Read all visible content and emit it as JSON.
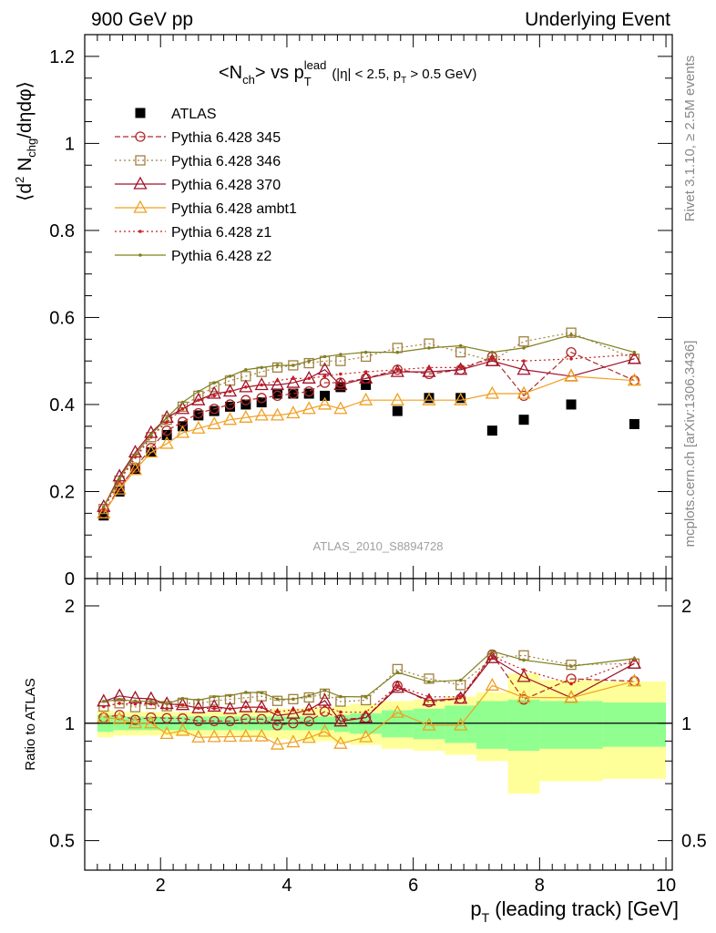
{
  "header": {
    "left": "900 GeV pp",
    "right": "Underlying Event"
  },
  "side_labels": {
    "rivet": "Rivet 3.1.10, ≥ 2.5M events",
    "mcplots": "mcplots.cern.ch [arXiv:1306.3436]"
  },
  "chart_data": [
    {
      "type": "scatter",
      "panel": "main",
      "title_parts": {
        "n": "<N",
        "n_sub": "ch",
        "mid": "> vs p",
        "p_sub": "T",
        "p_sup": "lead",
        "cuts_a": "(|η| < 2.5, p",
        "cuts_sub": "T",
        "cuts_b": " > 0.5 GeV)"
      },
      "ylabel_parts": {
        "a": "⟨d",
        "sup": "2",
        "b": " N",
        "sub": "chg",
        "c": "/dηdφ⟩"
      },
      "analysis_id": "ATLAS_2010_S8894728",
      "xlim": [
        0.8,
        10.1
      ],
      "ylim": [
        0,
        1.25
      ],
      "y_ticks": [
        "0",
        "0.2",
        "0.4",
        "0.6",
        "0.8",
        "1",
        "1.2"
      ],
      "x": [
        1.1,
        1.35,
        1.6,
        1.85,
        2.1,
        2.35,
        2.6,
        2.85,
        3.1,
        3.35,
        3.6,
        3.85,
        4.1,
        4.35,
        4.6,
        4.85,
        5.25,
        5.75,
        6.25,
        6.75,
        7.25,
        7.75,
        8.5,
        9.5
      ],
      "series": [
        {
          "name": "ATLAS",
          "color": "#000000",
          "marker": "filled-square",
          "line": "none",
          "values": [
            0.145,
            0.2,
            0.25,
            0.29,
            0.33,
            0.35,
            0.375,
            0.385,
            0.395,
            0.4,
            0.405,
            0.425,
            0.425,
            0.425,
            0.42,
            0.44,
            0.445,
            0.385,
            0.415,
            0.415,
            0.34,
            0.365,
            0.4,
            0.355
          ]
        },
        {
          "name": "Pythia 6.428 345",
          "color": "#b02a2a",
          "marker": "open-circle",
          "line": "dashed",
          "values": [
            0.15,
            0.21,
            0.255,
            0.3,
            0.34,
            0.36,
            0.38,
            0.39,
            0.4,
            0.41,
            0.415,
            0.42,
            0.425,
            0.43,
            0.45,
            0.45,
            0.46,
            0.48,
            0.47,
            0.48,
            0.51,
            0.42,
            0.52,
            0.455
          ]
        },
        {
          "name": "Pythia 6.428 346",
          "color": "#a08040",
          "marker": "open-square",
          "line": "dotted",
          "values": [
            0.16,
            0.225,
            0.275,
            0.325,
            0.365,
            0.395,
            0.42,
            0.44,
            0.455,
            0.465,
            0.475,
            0.485,
            0.49,
            0.495,
            0.5,
            0.5,
            0.51,
            0.53,
            0.54,
            0.52,
            0.5,
            0.545,
            0.565,
            0.505
          ]
        },
        {
          "name": "Pythia 6.428 370",
          "color": "#a0102a",
          "marker": "open-triangle",
          "line": "solid",
          "values": [
            0.165,
            0.235,
            0.29,
            0.335,
            0.37,
            0.39,
            0.41,
            0.425,
            0.43,
            0.44,
            0.445,
            0.445,
            0.45,
            0.46,
            0.48,
            0.445,
            0.46,
            0.475,
            0.475,
            0.48,
            0.5,
            0.48,
            0.465,
            0.505
          ]
        },
        {
          "name": "Pythia 6.428 ambt1",
          "color": "#f0a020",
          "marker": "open-triangle",
          "line": "solid",
          "values": [
            0.15,
            0.205,
            0.25,
            0.29,
            0.31,
            0.335,
            0.345,
            0.355,
            0.365,
            0.37,
            0.375,
            0.375,
            0.38,
            0.39,
            0.4,
            0.39,
            0.41,
            0.41,
            0.41,
            0.41,
            0.425,
            0.425,
            0.465,
            0.455
          ]
        },
        {
          "name": "Pythia 6.428 z1",
          "color": "#c82020",
          "marker": "small-dot",
          "line": "dotted",
          "values": [
            0.16,
            0.225,
            0.28,
            0.325,
            0.36,
            0.39,
            0.41,
            0.42,
            0.43,
            0.44,
            0.445,
            0.455,
            0.46,
            0.46,
            0.465,
            0.47,
            0.475,
            0.48,
            0.485,
            0.485,
            0.505,
            0.5,
            0.505,
            0.515
          ]
        },
        {
          "name": "Pythia 6.428 z2",
          "color": "#808020",
          "marker": "small-dot",
          "line": "solid",
          "values": [
            0.165,
            0.23,
            0.285,
            0.33,
            0.37,
            0.405,
            0.43,
            0.45,
            0.465,
            0.48,
            0.485,
            0.49,
            0.49,
            0.5,
            0.51,
            0.515,
            0.52,
            0.52,
            0.53,
            0.535,
            0.52,
            0.53,
            0.56,
            0.52
          ]
        }
      ],
      "legend_position": "upper-left"
    },
    {
      "type": "scatter",
      "panel": "ratio",
      "ylabel": "Ratio to ATLAS",
      "xlabel_parts": {
        "a": "p",
        "sub": "T",
        "b": " (leading track) [GeV]"
      },
      "x_ticks": [
        "2",
        "4",
        "6",
        "8",
        "10"
      ],
      "y_ticks": [
        "0.5",
        "1",
        "2"
      ],
      "ylim": [
        0.42,
        2.35
      ],
      "y_scale": "log",
      "reference_line": 1,
      "bin_edges": [
        1.0,
        1.25,
        1.5,
        1.75,
        2.0,
        2.25,
        2.5,
        2.75,
        3.0,
        3.25,
        3.5,
        3.75,
        4.0,
        4.25,
        4.5,
        4.75,
        5.0,
        5.5,
        6.0,
        6.5,
        7.0,
        7.5,
        8.0,
        9.0,
        10.0
      ],
      "bands": [
        {
          "label": "stat",
          "color": "#90ff90",
          "low": [
            0.95,
            0.96,
            0.96,
            0.96,
            0.96,
            0.96,
            0.96,
            0.96,
            0.96,
            0.96,
            0.96,
            0.96,
            0.96,
            0.96,
            0.96,
            0.95,
            0.94,
            0.92,
            0.91,
            0.89,
            0.86,
            0.85,
            0.86,
            0.87
          ],
          "high": [
            1.05,
            1.04,
            1.04,
            1.04,
            1.04,
            1.04,
            1.04,
            1.04,
            1.04,
            1.04,
            1.04,
            1.04,
            1.04,
            1.04,
            1.04,
            1.05,
            1.06,
            1.08,
            1.09,
            1.11,
            1.14,
            1.15,
            1.14,
            1.13
          ]
        },
        {
          "label": "total",
          "color": "#ffff99",
          "low": [
            0.92,
            0.93,
            0.93,
            0.93,
            0.93,
            0.93,
            0.93,
            0.93,
            0.93,
            0.92,
            0.92,
            0.91,
            0.91,
            0.9,
            0.9,
            0.89,
            0.88,
            0.86,
            0.85,
            0.83,
            0.8,
            0.66,
            0.71,
            0.72
          ],
          "high": [
            1.08,
            1.07,
            1.07,
            1.07,
            1.07,
            1.07,
            1.07,
            1.07,
            1.07,
            1.08,
            1.08,
            1.09,
            1.09,
            1.1,
            1.1,
            1.11,
            1.12,
            1.14,
            1.15,
            1.17,
            1.2,
            1.34,
            1.29,
            1.28
          ]
        }
      ]
    }
  ]
}
